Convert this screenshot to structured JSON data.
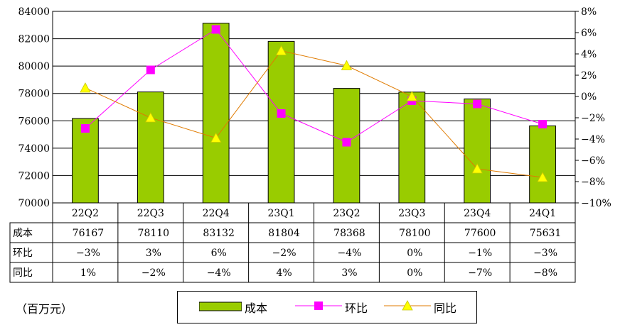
{
  "unit_note": "（百万元）",
  "chart_data": {
    "type": "bar",
    "categories": [
      "22Q2",
      "22Q3",
      "22Q4",
      "23Q1",
      "23Q2",
      "23Q3",
      "23Q4",
      "24Q1"
    ],
    "series": [
      {
        "name": "成本",
        "kind": "bar",
        "axis": "left",
        "color": "#99cc00",
        "values": [
          76167,
          78110,
          83132,
          81804,
          78368,
          78100,
          77600,
          75631
        ]
      },
      {
        "name": "环比",
        "kind": "line",
        "axis": "right",
        "color": "#ff00ff",
        "marker": "square",
        "values": [
          -3.0,
          2.5,
          6.3,
          -1.6,
          -4.3,
          -0.4,
          -0.7,
          -2.6
        ]
      },
      {
        "name": "同比",
        "kind": "line",
        "axis": "right",
        "color": "#ffff00",
        "line_color": "#e07b00",
        "marker": "triangle",
        "values": [
          0.8,
          -2.0,
          -3.9,
          4.3,
          2.9,
          0.0,
          -6.8,
          -7.6
        ]
      }
    ],
    "left_axis": {
      "ylim": [
        70000,
        84000
      ],
      "ticks": [
        "70000",
        "72000",
        "74000",
        "76000",
        "78000",
        "80000",
        "82000",
        "84000"
      ]
    },
    "right_axis": {
      "ylim": [
        -10,
        8
      ],
      "ticks": [
        "-10%",
        "-8%",
        "-6%",
        "-4%",
        "-2%",
        "0%",
        "2%",
        "4%",
        "6%",
        "8%"
      ]
    },
    "grid": true,
    "table": {
      "rows": [
        {
          "label": "成本",
          "cells": [
            "76167",
            "78110",
            "83132",
            "81804",
            "78368",
            "78100",
            "77600",
            "75631"
          ]
        },
        {
          "label": "环比",
          "cells": [
            "-3%",
            "3%",
            "6%",
            "-2%",
            "-4%",
            "0%",
            "-1%",
            "-3%"
          ]
        },
        {
          "label": "同比",
          "cells": [
            "1%",
            "-2%",
            "-4%",
            "4%",
            "3%",
            "0%",
            "-7%",
            "-8%"
          ]
        }
      ]
    },
    "legend": {
      "position": "bottom",
      "items": [
        "成本",
        "环比",
        "同比"
      ]
    }
  }
}
